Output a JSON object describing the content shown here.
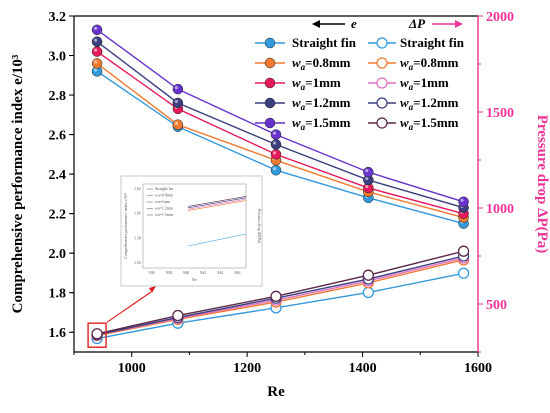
{
  "chart_data": {
    "type": "line",
    "xlabel": "Re",
    "ylabel_left": "Comprehensive performance index e/10³",
    "ylabel_right": "Pressure drop ΔP(Pa)",
    "x": [
      940,
      1080,
      1250,
      1410,
      1575
    ],
    "xlim": [
      900,
      1600
    ],
    "xticks": [
      1000,
      1200,
      1400,
      1600
    ],
    "ylim_left": [
      1.5,
      3.2
    ],
    "yticks_left": [
      1.6,
      1.8,
      2.0,
      2.2,
      2.4,
      2.6,
      2.8,
      3.0,
      3.2
    ],
    "ylim_right": [
      250,
      2000
    ],
    "yticks_right": [
      500,
      1000,
      1500,
      2000
    ],
    "legend_headers": {
      "left": "e",
      "right": "ΔP"
    },
    "series_e": [
      {
        "name": "Straight fin",
        "color": "#3399dd",
        "values": [
          2.92,
          2.64,
          2.42,
          2.28,
          2.15
        ]
      },
      {
        "name": "w_a=0.8mm",
        "color": "#f07a30",
        "values": [
          2.96,
          2.65,
          2.47,
          2.31,
          2.18
        ]
      },
      {
        "name": "w_a=1mm",
        "color": "#e6195a",
        "values": [
          3.02,
          2.73,
          2.5,
          2.33,
          2.2
        ]
      },
      {
        "name": "w_a=1.2mm",
        "color": "#3b3f80",
        "values": [
          3.07,
          2.76,
          2.55,
          2.37,
          2.23
        ]
      },
      {
        "name": "w_a=1.5mm",
        "color": "#6633cc",
        "values": [
          3.13,
          2.83,
          2.6,
          2.41,
          2.26
        ]
      }
    ],
    "series_dp": [
      {
        "name": "Straight fin",
        "color": "#3399dd",
        "values": [
          320,
          400,
          480,
          560,
          660
        ]
      },
      {
        "name": "w_a=0.8mm",
        "color": "#f07a30",
        "values": [
          335,
          420,
          510,
          610,
          730
        ]
      },
      {
        "name": "w_a=1mm",
        "color": "#e070c0",
        "values": [
          338,
          425,
          520,
          620,
          740
        ]
      },
      {
        "name": "w_a=1.2mm",
        "color": "#3b3f80",
        "values": [
          340,
          430,
          530,
          630,
          750
        ]
      },
      {
        "name": "w_a=1.5mm",
        "color": "#5a2a4a",
        "values": [
          345,
          440,
          540,
          650,
          775
        ]
      }
    ],
    "inset": {
      "x_ticks": [
        "936",
        "938",
        "940",
        "942",
        "944",
        "946"
      ],
      "y_ticks": [
        "1.62",
        "1.60",
        "1.58",
        "1.56"
      ],
      "xlabel": "Re",
      "ylabel_left": "Comprehensive performance index e/10³",
      "ylabel_right": "Pressure drop ΔP(Pa)",
      "legend": [
        "Straight fin",
        "w_a=0.8mm",
        "w_a=1mm",
        "w_a=1.2mm",
        "w_a=1.5mm"
      ]
    }
  }
}
